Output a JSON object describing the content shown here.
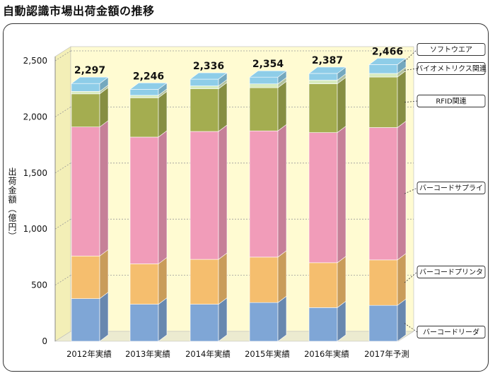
{
  "page": {
    "title": "自動認識市場出荷金額の推移"
  },
  "chart_data": {
    "type": "bar",
    "stacked": true,
    "categories": [
      "2012年実績",
      "2013年実績",
      "2014年実績",
      "2015年実績",
      "2016年実績",
      "2017年予測"
    ],
    "totals": [
      "2,297",
      "2,246",
      "2,336",
      "2,354",
      "2,387",
      "2,466"
    ],
    "series": [
      {
        "name": "バーコードリーダ",
        "color": "#7fa6d6",
        "values": [
          380,
          330,
          330,
          345,
          300,
          320
        ]
      },
      {
        "name": "バーコードプリンタ",
        "color": "#f5be6e",
        "values": [
          380,
          360,
          400,
          405,
          400,
          405
        ]
      },
      {
        "name": "バーコードサプライ",
        "color": "#f19cb9",
        "values": [
          1150,
          1130,
          1140,
          1125,
          1160,
          1180
        ]
      },
      {
        "name": "RFID関連",
        "color": "#a4ad50",
        "values": [
          295,
          350,
          380,
          385,
          435,
          450
        ]
      },
      {
        "name": "バイオメトリクス関連",
        "color": "#d8ebc0",
        "values": [
          22,
          22,
          26,
          34,
          32,
          32
        ]
      },
      {
        "name": "ソフトウエア",
        "color": "#8ecde8",
        "values": [
          70,
          54,
          60,
          60,
          60,
          79
        ]
      }
    ],
    "yticks": [
      "0",
      "500",
      "1,000",
      "1,500",
      "2,000",
      "2,500"
    ],
    "ylim": [
      0,
      2500
    ],
    "ylabel": "出荷金額（億円）",
    "xlabel": "",
    "grid": true,
    "legend": "right"
  }
}
